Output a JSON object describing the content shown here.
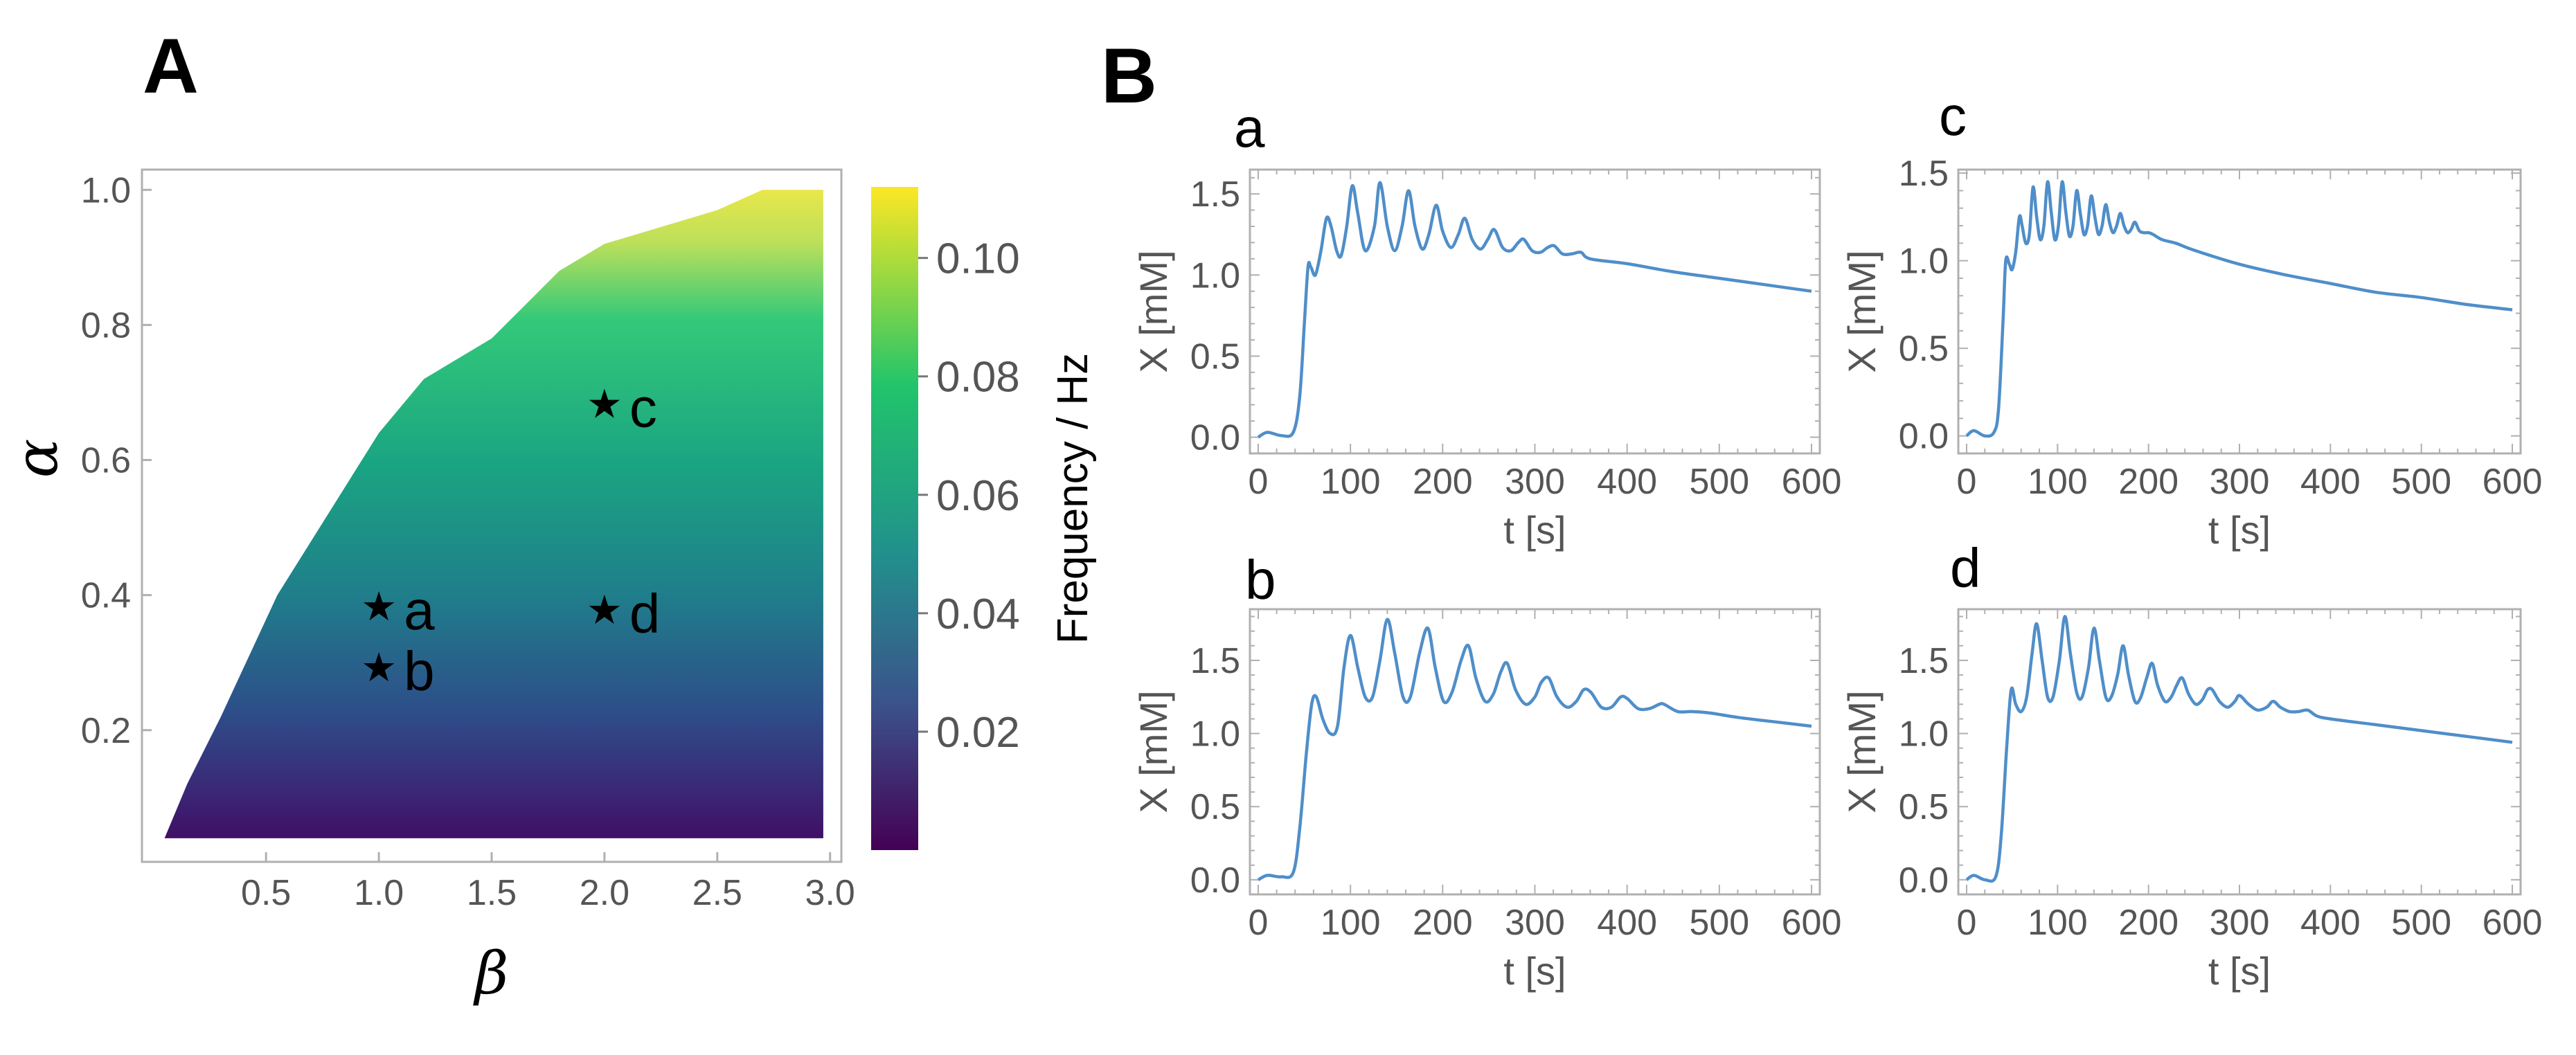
{
  "panels": {
    "A": "A",
    "B": "B"
  },
  "heatmap": {
    "xlabel": "β",
    "ylabel": "α",
    "xticks": [
      "0.5",
      "1.0",
      "1.5",
      "2.0",
      "2.5",
      "3.0"
    ],
    "yticks": [
      "0.2",
      "0.4",
      "0.6",
      "0.8",
      "1.0"
    ],
    "colorbar": {
      "label": "Frequency / Hz",
      "ticks": [
        "0.02",
        "0.04",
        "0.06",
        "0.08",
        "0.10"
      ]
    }
  },
  "colors": {
    "line": "#4f8ec9",
    "viridis": [
      "#440154",
      "#3b528b",
      "#21918c",
      "#5ec962",
      "#21c46b",
      "#fde725"
    ]
  },
  "chart_data": [
    {
      "type": "heatmap",
      "xlabel": "β",
      "ylabel": "α",
      "xlim": [
        0,
        3.0
      ],
      "ylim": [
        0.02,
        1.0
      ],
      "colorbar_label": "Frequency / Hz",
      "colorbar_range": [
        0.0,
        0.112
      ],
      "colorbar_ticks": [
        0.02,
        0.04,
        0.06,
        0.08,
        0.1
      ],
      "boundary": [
        [
          0.05,
          0.04
        ],
        [
          0.15,
          0.12
        ],
        [
          0.3,
          0.22
        ],
        [
          0.55,
          0.4
        ],
        [
          1.0,
          0.64
        ],
        [
          1.2,
          0.72
        ],
        [
          1.5,
          0.78
        ],
        [
          1.8,
          0.88
        ],
        [
          2.0,
          0.92
        ],
        [
          2.5,
          0.97
        ],
        [
          2.7,
          1.0
        ],
        [
          2.97,
          1.0
        ],
        [
          2.97,
          0.04
        ]
      ],
      "points": [
        {
          "label": "a",
          "beta": 1.0,
          "alpha": 0.38
        },
        {
          "label": "b",
          "beta": 1.0,
          "alpha": 0.29
        },
        {
          "label": "c",
          "beta": 2.0,
          "alpha": 0.68
        },
        {
          "label": "d",
          "beta": 2.0,
          "alpha": 0.375
        }
      ]
    },
    {
      "type": "line",
      "title": "a",
      "xlabel": "t [s]",
      "ylabel": "X [mM]",
      "xlim": [
        0,
        600
      ],
      "ylim": [
        -0.1,
        1.65
      ],
      "xticks": [
        0,
        100,
        200,
        300,
        400,
        500,
        600
      ],
      "yticks": [
        0.0,
        0.5,
        1.0,
        1.5
      ],
      "points": [
        [
          0,
          0.0
        ],
        [
          10,
          0.03
        ],
        [
          25,
          0.01
        ],
        [
          38,
          0.03
        ],
        [
          45,
          0.25
        ],
        [
          50,
          0.7
        ],
        [
          54,
          1.05
        ],
        [
          57,
          1.05
        ],
        [
          62,
          1.0
        ],
        [
          68,
          1.15
        ],
        [
          74,
          1.35
        ],
        [
          79,
          1.3
        ],
        [
          85,
          1.15
        ],
        [
          90,
          1.12
        ],
        [
          96,
          1.3
        ],
        [
          102,
          1.55
        ],
        [
          108,
          1.38
        ],
        [
          116,
          1.15
        ],
        [
          126,
          1.3
        ],
        [
          132,
          1.57
        ],
        [
          140,
          1.3
        ],
        [
          148,
          1.15
        ],
        [
          156,
          1.3
        ],
        [
          163,
          1.52
        ],
        [
          170,
          1.3
        ],
        [
          178,
          1.16
        ],
        [
          185,
          1.25
        ],
        [
          193,
          1.43
        ],
        [
          200,
          1.27
        ],
        [
          209,
          1.17
        ],
        [
          217,
          1.25
        ],
        [
          224,
          1.35
        ],
        [
          232,
          1.22
        ],
        [
          241,
          1.16
        ],
        [
          249,
          1.22
        ],
        [
          256,
          1.28
        ],
        [
          265,
          1.17
        ],
        [
          274,
          1.15
        ],
        [
          282,
          1.2
        ],
        [
          288,
          1.22
        ],
        [
          297,
          1.15
        ],
        [
          306,
          1.14
        ],
        [
          314,
          1.17
        ],
        [
          321,
          1.18
        ],
        [
          330,
          1.13
        ],
        [
          340,
          1.13
        ],
        [
          350,
          1.14
        ],
        [
          360,
          1.1
        ],
        [
          400,
          1.07
        ],
        [
          450,
          1.02
        ],
        [
          500,
          0.98
        ],
        [
          550,
          0.94
        ],
        [
          600,
          0.9
        ]
      ]
    },
    {
      "type": "line",
      "title": "b",
      "xlabel": "t [s]",
      "ylabel": "X [mM]",
      "xlim": [
        0,
        600
      ],
      "ylim": [
        -0.1,
        1.85
      ],
      "xticks": [
        0,
        100,
        200,
        300,
        400,
        500,
        600
      ],
      "yticks": [
        0.0,
        0.5,
        1.0,
        1.5
      ],
      "points": [
        [
          0,
          0.0
        ],
        [
          10,
          0.03
        ],
        [
          25,
          0.02
        ],
        [
          38,
          0.05
        ],
        [
          45,
          0.35
        ],
        [
          52,
          0.85
        ],
        [
          58,
          1.2
        ],
        [
          63,
          1.25
        ],
        [
          70,
          1.1
        ],
        [
          78,
          1.0
        ],
        [
          86,
          1.05
        ],
        [
          93,
          1.45
        ],
        [
          100,
          1.67
        ],
        [
          108,
          1.45
        ],
        [
          116,
          1.25
        ],
        [
          124,
          1.25
        ],
        [
          132,
          1.5
        ],
        [
          140,
          1.78
        ],
        [
          148,
          1.55
        ],
        [
          157,
          1.25
        ],
        [
          165,
          1.25
        ],
        [
          175,
          1.55
        ],
        [
          184,
          1.72
        ],
        [
          192,
          1.45
        ],
        [
          201,
          1.22
        ],
        [
          210,
          1.28
        ],
        [
          220,
          1.5
        ],
        [
          228,
          1.6
        ],
        [
          236,
          1.38
        ],
        [
          246,
          1.22
        ],
        [
          255,
          1.27
        ],
        [
          263,
          1.42
        ],
        [
          270,
          1.48
        ],
        [
          279,
          1.3
        ],
        [
          290,
          1.2
        ],
        [
          300,
          1.25
        ],
        [
          307,
          1.35
        ],
        [
          315,
          1.38
        ],
        [
          324,
          1.25
        ],
        [
          335,
          1.18
        ],
        [
          345,
          1.22
        ],
        [
          353,
          1.3
        ],
        [
          361,
          1.28
        ],
        [
          372,
          1.18
        ],
        [
          383,
          1.18
        ],
        [
          393,
          1.25
        ],
        [
          400,
          1.24
        ],
        [
          412,
          1.17
        ],
        [
          424,
          1.17
        ],
        [
          435,
          1.2
        ],
        [
          440,
          1.2
        ],
        [
          455,
          1.15
        ],
        [
          470,
          1.15
        ],
        [
          490,
          1.14
        ],
        [
          520,
          1.11
        ],
        [
          560,
          1.08
        ],
        [
          600,
          1.05
        ]
      ]
    },
    {
      "type": "line",
      "title": "c",
      "xlabel": "t [s]",
      "ylabel": "X [mM]",
      "xlim": [
        0,
        600
      ],
      "ylim": [
        -0.1,
        1.52
      ],
      "xticks": [
        0,
        100,
        200,
        300,
        400,
        500,
        600
      ],
      "yticks": [
        0.0,
        0.5,
        1.0,
        1.5
      ],
      "points": [
        [
          0,
          0.0
        ],
        [
          8,
          0.03
        ],
        [
          20,
          0.0
        ],
        [
          30,
          0.02
        ],
        [
          35,
          0.15
        ],
        [
          40,
          0.65
        ],
        [
          43,
          1.0
        ],
        [
          47,
          0.98
        ],
        [
          50,
          0.95
        ],
        [
          54,
          1.05
        ],
        [
          58,
          1.25
        ],
        [
          61,
          1.2
        ],
        [
          65,
          1.1
        ],
        [
          69,
          1.15
        ],
        [
          73,
          1.42
        ],
        [
          77,
          1.25
        ],
        [
          81,
          1.12
        ],
        [
          85,
          1.2
        ],
        [
          89,
          1.45
        ],
        [
          93,
          1.28
        ],
        [
          97,
          1.12
        ],
        [
          101,
          1.2
        ],
        [
          105,
          1.45
        ],
        [
          109,
          1.28
        ],
        [
          113,
          1.14
        ],
        [
          117,
          1.2
        ],
        [
          121,
          1.4
        ],
        [
          125,
          1.27
        ],
        [
          129,
          1.15
        ],
        [
          133,
          1.2
        ],
        [
          137,
          1.37
        ],
        [
          141,
          1.25
        ],
        [
          145,
          1.15
        ],
        [
          149,
          1.2
        ],
        [
          153,
          1.32
        ],
        [
          157,
          1.22
        ],
        [
          161,
          1.16
        ],
        [
          165,
          1.2
        ],
        [
          169,
          1.27
        ],
        [
          173,
          1.2
        ],
        [
          177,
          1.16
        ],
        [
          181,
          1.18
        ],
        [
          185,
          1.22
        ],
        [
          190,
          1.17
        ],
        [
          195,
          1.16
        ],
        [
          200,
          1.16
        ],
        [
          205,
          1.15
        ],
        [
          215,
          1.12
        ],
        [
          230,
          1.1
        ],
        [
          250,
          1.06
        ],
        [
          300,
          0.98
        ],
        [
          350,
          0.92
        ],
        [
          400,
          0.87
        ],
        [
          450,
          0.82
        ],
        [
          500,
          0.79
        ],
        [
          550,
          0.75
        ],
        [
          600,
          0.72
        ]
      ]
    },
    {
      "type": "line",
      "title": "d",
      "xlabel": "t [s]",
      "ylabel": "X [mM]",
      "xlim": [
        0,
        600
      ],
      "ylim": [
        -0.1,
        1.85
      ],
      "xticks": [
        0,
        100,
        200,
        300,
        400,
        500,
        600
      ],
      "yticks": [
        0.0,
        0.5,
        1.0,
        1.5
      ],
      "points": [
        [
          0,
          0.0
        ],
        [
          8,
          0.03
        ],
        [
          20,
          0.0
        ],
        [
          32,
          0.02
        ],
        [
          38,
          0.3
        ],
        [
          44,
          0.9
        ],
        [
          49,
          1.3
        ],
        [
          54,
          1.2
        ],
        [
          60,
          1.15
        ],
        [
          66,
          1.25
        ],
        [
          72,
          1.55
        ],
        [
          77,
          1.75
        ],
        [
          83,
          1.5
        ],
        [
          89,
          1.25
        ],
        [
          95,
          1.25
        ],
        [
          102,
          1.5
        ],
        [
          108,
          1.8
        ],
        [
          114,
          1.55
        ],
        [
          121,
          1.28
        ],
        [
          127,
          1.25
        ],
        [
          134,
          1.45
        ],
        [
          140,
          1.72
        ],
        [
          146,
          1.5
        ],
        [
          153,
          1.25
        ],
        [
          159,
          1.25
        ],
        [
          166,
          1.4
        ],
        [
          172,
          1.6
        ],
        [
          178,
          1.4
        ],
        [
          185,
          1.22
        ],
        [
          191,
          1.24
        ],
        [
          198,
          1.38
        ],
        [
          204,
          1.48
        ],
        [
          210,
          1.33
        ],
        [
          218,
          1.22
        ],
        [
          225,
          1.25
        ],
        [
          231,
          1.33
        ],
        [
          237,
          1.38
        ],
        [
          244,
          1.27
        ],
        [
          252,
          1.2
        ],
        [
          259,
          1.23
        ],
        [
          265,
          1.3
        ],
        [
          270,
          1.3
        ],
        [
          278,
          1.22
        ],
        [
          287,
          1.18
        ],
        [
          295,
          1.22
        ],
        [
          300,
          1.26
        ],
        [
          310,
          1.2
        ],
        [
          320,
          1.16
        ],
        [
          330,
          1.18
        ],
        [
          337,
          1.22
        ],
        [
          345,
          1.18
        ],
        [
          355,
          1.15
        ],
        [
          365,
          1.15
        ],
        [
          375,
          1.16
        ],
        [
          385,
          1.12
        ],
        [
          400,
          1.1
        ],
        [
          450,
          1.06
        ],
        [
          500,
          1.02
        ],
        [
          550,
          0.98
        ],
        [
          600,
          0.94
        ]
      ]
    }
  ]
}
